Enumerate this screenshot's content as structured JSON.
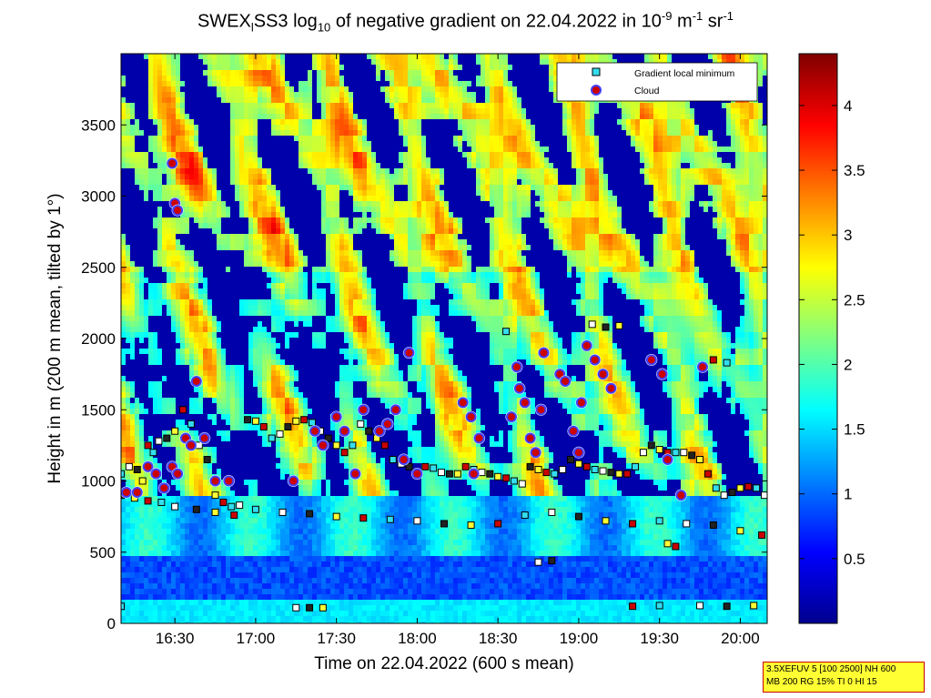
{
  "title": {
    "prefix": "SWEX",
    "sub1": "l",
    "mid": "SS3 log",
    "sub2": "10",
    "rest": " of negative gradient on 22.04.2022 in 10",
    "sup1": "-9",
    "unit1": " m",
    "sup2": "-1",
    "unit2": " sr",
    "sup3": "-1"
  },
  "info_box": {
    "line1": "3.5XEFUV 5 [100 2500] NH 600",
    "line2": "MB 200 RG 15% TI 0 HI 15"
  },
  "colors": {
    "deep_blue": "#00008f",
    "cyan": "#33ddee",
    "yellow": "#f0e050",
    "orange": "#ff9020",
    "cloud_face": "#cc0000",
    "cloud_edge": "#4040ff"
  },
  "chart_data": {
    "type": "heatmap",
    "xlabel": "Time on 22.04.2022 (600 s mean)",
    "ylabel": "Height in m (200 m mean, tilted by 1°)",
    "xlim": [
      "16:10",
      "20:10"
    ],
    "ylim": [
      0,
      4000
    ],
    "x_ticks": [
      "16:30",
      "17:00",
      "17:30",
      "18:00",
      "18:30",
      "19:00",
      "19:30",
      "20:00"
    ],
    "y_ticks": [
      0,
      500,
      1000,
      1500,
      2000,
      2500,
      3000,
      3500
    ],
    "colorbar": {
      "range": [
        0,
        4.4
      ],
      "ticks": [
        "0.5",
        "1",
        "1.5",
        "2",
        "2.5",
        "3",
        "3.5",
        "4"
      ],
      "colormap": "jet"
    },
    "legend": {
      "placement": "top-right",
      "entries": [
        "Gradient local minimum",
        "Cloud"
      ]
    },
    "series": [
      {
        "name": "Gradient local minimum",
        "points": [
          [
            "16:10",
            1050
          ],
          [
            "16:13",
            1100
          ],
          [
            "16:16",
            1080
          ],
          [
            "16:18",
            1000
          ],
          [
            "16:20",
            1250
          ],
          [
            "16:22",
            1200
          ],
          [
            "16:24",
            1280
          ],
          [
            "16:27",
            1300
          ],
          [
            "16:30",
            1350
          ],
          [
            "16:33",
            1500
          ],
          [
            "16:36",
            1400
          ],
          [
            "16:39",
            1250
          ],
          [
            "16:42",
            1150
          ],
          [
            "16:45",
            900
          ],
          [
            "16:48",
            850
          ],
          [
            "16:51",
            820
          ],
          [
            "16:54",
            830
          ],
          [
            "16:57",
            1430
          ],
          [
            "17:00",
            1420
          ],
          [
            "17:03",
            1380
          ],
          [
            "17:06",
            1300
          ],
          [
            "17:09",
            1330
          ],
          [
            "17:12",
            1380
          ],
          [
            "17:15",
            1420
          ],
          [
            "17:18",
            1430
          ],
          [
            "17:21",
            1410
          ],
          [
            "17:24",
            1350
          ],
          [
            "17:27",
            1300
          ],
          [
            "17:30",
            1250
          ],
          [
            "17:33",
            1200
          ],
          [
            "17:36",
            1250
          ],
          [
            "17:39",
            1400
          ],
          [
            "17:42",
            1350
          ],
          [
            "17:45",
            1300
          ],
          [
            "17:48",
            1250
          ],
          [
            "17:51",
            1150
          ],
          [
            "17:54",
            1120
          ],
          [
            "17:57",
            1100
          ],
          [
            "18:00",
            1050
          ],
          [
            "18:03",
            1100
          ],
          [
            "18:06",
            1090
          ],
          [
            "18:09",
            1060
          ],
          [
            "18:12",
            1050
          ],
          [
            "18:15",
            1050
          ],
          [
            "18:18",
            1100
          ],
          [
            "18:21",
            1080
          ],
          [
            "18:24",
            1060
          ],
          [
            "18:27",
            1050
          ],
          [
            "18:30",
            1030
          ],
          [
            "18:33",
            1020
          ],
          [
            "18:36",
            1000
          ],
          [
            "18:39",
            980
          ],
          [
            "18:42",
            1100
          ],
          [
            "18:45",
            1080
          ],
          [
            "18:48",
            1060
          ],
          [
            "18:51",
            1050
          ],
          [
            "18:54",
            1080
          ],
          [
            "18:57",
            1150
          ],
          [
            "19:00",
            1120
          ],
          [
            "19:03",
            1100
          ],
          [
            "19:06",
            1080
          ],
          [
            "19:09",
            1070
          ],
          [
            "19:12",
            1060
          ],
          [
            "19:15",
            1050
          ],
          [
            "19:18",
            1050
          ],
          [
            "19:21",
            1100
          ],
          [
            "19:24",
            1200
          ],
          [
            "19:27",
            1250
          ],
          [
            "19:30",
            1220
          ],
          [
            "19:33",
            1200
          ],
          [
            "19:36",
            1200
          ],
          [
            "19:39",
            1200
          ],
          [
            "19:42",
            1180
          ],
          [
            "19:45",
            1150
          ],
          [
            "19:48",
            1050
          ],
          [
            "19:51",
            950
          ],
          [
            "19:54",
            900
          ],
          [
            "19:57",
            920
          ],
          [
            "20:00",
            950
          ],
          [
            "20:03",
            960
          ],
          [
            "20:06",
            950
          ],
          [
            "20:09",
            900
          ],
          [
            "16:10",
            900
          ],
          [
            "16:15",
            880
          ],
          [
            "16:20",
            860
          ],
          [
            "16:25",
            850
          ],
          [
            "16:30",
            820
          ],
          [
            "16:38",
            800
          ],
          [
            "16:45",
            780
          ],
          [
            "16:52",
            760
          ],
          [
            "17:00",
            800
          ],
          [
            "17:10",
            780
          ],
          [
            "17:20",
            770
          ],
          [
            "17:30",
            750
          ],
          [
            "17:40",
            740
          ],
          [
            "17:50",
            730
          ],
          [
            "18:00",
            720
          ],
          [
            "18:10",
            700
          ],
          [
            "18:20",
            690
          ],
          [
            "18:30",
            700
          ],
          [
            "18:40",
            760
          ],
          [
            "18:50",
            780
          ],
          [
            "19:00",
            750
          ],
          [
            "19:10",
            720
          ],
          [
            "19:20",
            700
          ],
          [
            "19:30",
            720
          ],
          [
            "19:40",
            700
          ],
          [
            "19:50",
            690
          ],
          [
            "20:00",
            650
          ],
          [
            "20:08",
            620
          ],
          [
            "18:33",
            2050
          ],
          [
            "19:05",
            2100
          ],
          [
            "19:10",
            2080
          ],
          [
            "19:15",
            2090
          ],
          [
            "19:50",
            1850
          ],
          [
            "19:55",
            1830
          ],
          [
            "18:45",
            430
          ],
          [
            "18:50",
            440
          ],
          [
            "19:33",
            560
          ],
          [
            "19:36",
            540
          ],
          [
            "16:10",
            120
          ],
          [
            "17:15",
            110
          ],
          [
            "17:20",
            110
          ],
          [
            "17:25",
            110
          ],
          [
            "19:20",
            120
          ],
          [
            "19:30",
            125
          ],
          [
            "19:45",
            125
          ],
          [
            "19:55",
            120
          ],
          [
            "20:05",
            125
          ]
        ]
      },
      {
        "name": "Cloud",
        "points": [
          [
            "16:12",
            920
          ],
          [
            "16:16",
            920
          ],
          [
            "16:20",
            1100
          ],
          [
            "16:23",
            1050
          ],
          [
            "16:26",
            950
          ],
          [
            "16:29",
            1100
          ],
          [
            "16:31",
            1050
          ],
          [
            "16:34",
            1300
          ],
          [
            "16:36",
            1250
          ],
          [
            "16:38",
            1700
          ],
          [
            "16:41",
            1300
          ],
          [
            "16:45",
            1000
          ],
          [
            "16:50",
            1000
          ],
          [
            "16:29",
            3230
          ],
          [
            "16:30",
            2950
          ],
          [
            "16:31",
            2900
          ],
          [
            "17:14",
            1000
          ],
          [
            "17:22",
            1350
          ],
          [
            "17:25",
            1250
          ],
          [
            "17:30",
            1450
          ],
          [
            "17:33",
            1350
          ],
          [
            "17:37",
            1050
          ],
          [
            "17:40",
            1500
          ],
          [
            "17:46",
            1350
          ],
          [
            "17:49",
            1400
          ],
          [
            "17:52",
            1500
          ],
          [
            "17:55",
            1150
          ],
          [
            "17:57",
            1900
          ],
          [
            "18:00",
            1050
          ],
          [
            "18:17",
            1550
          ],
          [
            "18:20",
            1450
          ],
          [
            "18:21",
            1050
          ],
          [
            "18:23",
            1300
          ],
          [
            "18:35",
            1450
          ],
          [
            "18:37",
            1800
          ],
          [
            "18:38",
            1650
          ],
          [
            "18:40",
            1550
          ],
          [
            "18:42",
            1300
          ],
          [
            "18:44",
            1200
          ],
          [
            "18:46",
            1500
          ],
          [
            "18:47",
            1900
          ],
          [
            "18:53",
            1750
          ],
          [
            "18:55",
            1700
          ],
          [
            "18:58",
            1350
          ],
          [
            "19:00",
            1200
          ],
          [
            "19:01",
            1550
          ],
          [
            "19:03",
            1950
          ],
          [
            "19:06",
            1850
          ],
          [
            "19:09",
            1750
          ],
          [
            "19:12",
            1650
          ],
          [
            "19:27",
            1850
          ],
          [
            "19:31",
            1750
          ],
          [
            "19:33",
            1150
          ],
          [
            "19:38",
            900
          ],
          [
            "19:46",
            1800
          ]
        ]
      }
    ]
  }
}
